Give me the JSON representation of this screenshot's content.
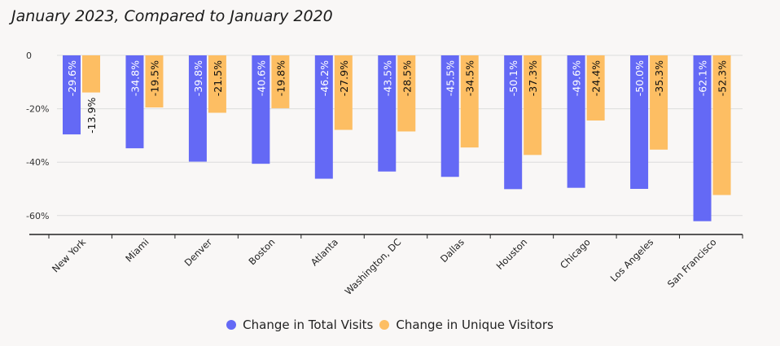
{
  "chart_data": {
    "type": "bar",
    "title": "January 2023, Compared to January 2020",
    "xlabel": "",
    "ylabel": "",
    "ylim": [
      -67,
      0
    ],
    "yticks": [
      0,
      -20,
      -40,
      -60
    ],
    "ytick_labels": [
      "0",
      "-20%",
      "-40%",
      "-60%"
    ],
    "grid": true,
    "legend_position": "bottom",
    "categories": [
      "New York",
      "Miami",
      "Denver",
      "Boston",
      "Atlanta",
      "Washington, DC",
      "Dallas",
      "Houston",
      "Chicago",
      "Los Angeles",
      "San Francisco"
    ],
    "series": [
      {
        "name": "Change in Total Visits",
        "color": "#6469f5",
        "values": [
          -29.6,
          -34.8,
          -39.8,
          -40.6,
          -46.2,
          -43.5,
          -45.5,
          -50.1,
          -49.6,
          -50.0,
          -62.1
        ],
        "labels": [
          "-29.6%",
          "-34.8%",
          "-39.8%",
          "-40.6%",
          "-46.2%",
          "-43.5%",
          "-45.5%",
          "-50.1%",
          "-49.6%",
          "-50.0%",
          "-62.1%"
        ]
      },
      {
        "name": "Change in Unique Visitors",
        "color": "#fdbe63",
        "values": [
          -13.9,
          -19.5,
          -21.5,
          -19.8,
          -27.9,
          -28.5,
          -34.5,
          -37.3,
          -24.4,
          -35.3,
          -52.3
        ],
        "labels": [
          "-13.9%",
          "-19.5%",
          "-21.5%",
          "-19.8%",
          "-27.9%",
          "-28.5%",
          "-34.5%",
          "-37.3%",
          "-24.4%",
          "-35.3%",
          "-52.3%"
        ]
      }
    ]
  }
}
